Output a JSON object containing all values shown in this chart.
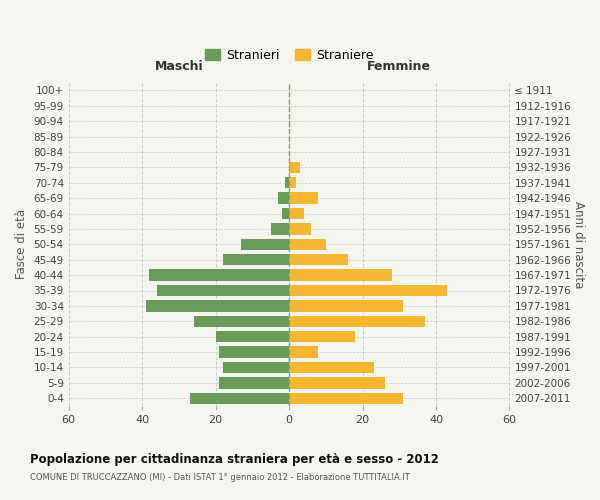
{
  "age_groups": [
    "0-4",
    "5-9",
    "10-14",
    "15-19",
    "20-24",
    "25-29",
    "30-34",
    "35-39",
    "40-44",
    "45-49",
    "50-54",
    "55-59",
    "60-64",
    "65-69",
    "70-74",
    "75-79",
    "80-84",
    "85-89",
    "90-94",
    "95-99",
    "100+"
  ],
  "birth_years": [
    "2007-2011",
    "2002-2006",
    "1997-2001",
    "1992-1996",
    "1987-1991",
    "1982-1986",
    "1977-1981",
    "1972-1976",
    "1967-1971",
    "1962-1966",
    "1957-1961",
    "1952-1956",
    "1947-1951",
    "1942-1946",
    "1937-1941",
    "1932-1936",
    "1927-1931",
    "1922-1926",
    "1917-1921",
    "1912-1916",
    "≤ 1911"
  ],
  "males": [
    27,
    19,
    18,
    19,
    20,
    26,
    39,
    36,
    38,
    18,
    13,
    5,
    2,
    3,
    1,
    0,
    0,
    0,
    0,
    0,
    0
  ],
  "females": [
    31,
    26,
    23,
    8,
    18,
    37,
    31,
    43,
    28,
    16,
    10,
    6,
    4,
    8,
    2,
    3,
    0,
    0,
    0,
    0,
    0
  ],
  "male_color": "#6a9a5a",
  "female_color": "#f5b731",
  "background_color": "#f5f5f0",
  "grid_color": "#cccccc",
  "title": "Popolazione per cittadinanza straniera per età e sesso - 2012",
  "subtitle": "COMUNE DI TRUCCAZZANO (MI) - Dati ISTAT 1° gennaio 2012 - Elaborazione TUTTITALIA.IT",
  "ylabel_left": "Fasce di età",
  "ylabel_right": "Anni di nascita",
  "xlabel_left": "Maschi",
  "xlabel_right": "Femmine",
  "legend_males": "Stranieri",
  "legend_females": "Straniere",
  "xlim": 60,
  "bar_height": 0.75,
  "center_line_color": "#999966"
}
